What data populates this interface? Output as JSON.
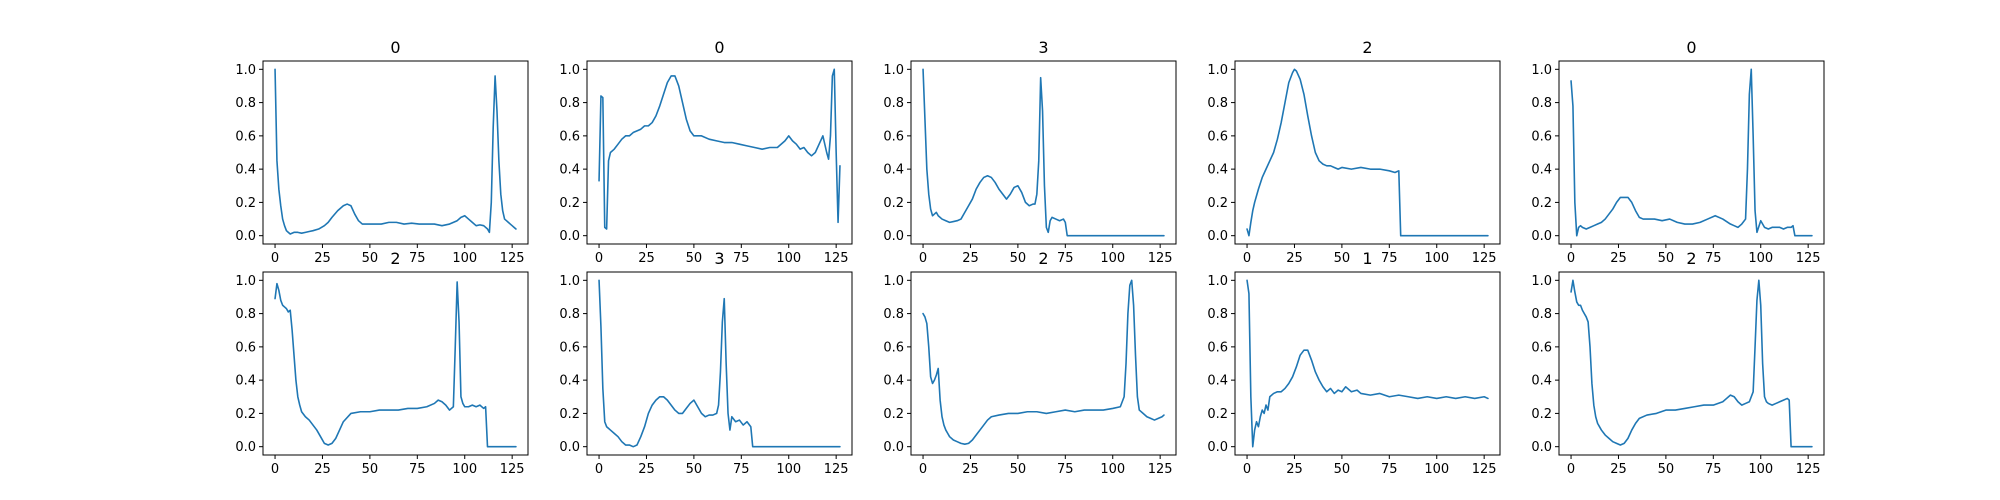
{
  "chart_data": [
    {
      "type": "line",
      "title": "0",
      "x": [
        0,
        1,
        2,
        3,
        4,
        5,
        6,
        7,
        8,
        10,
        12,
        14,
        16,
        18,
        20,
        23,
        26,
        28,
        30,
        33,
        36,
        38,
        40,
        42,
        44,
        46,
        48,
        52,
        56,
        60,
        64,
        68,
        72,
        76,
        80,
        84,
        88,
        92,
        96,
        98,
        100,
        102,
        104,
        106,
        108,
        110,
        112,
        113,
        114,
        115,
        116,
        117,
        118,
        119,
        120,
        121,
        122,
        123,
        124,
        125,
        126,
        127
      ],
      "values": [
        1.0,
        0.45,
        0.28,
        0.18,
        0.1,
        0.06,
        0.03,
        0.02,
        0.01,
        0.02,
        0.02,
        0.015,
        0.02,
        0.025,
        0.03,
        0.04,
        0.06,
        0.08,
        0.11,
        0.15,
        0.18,
        0.19,
        0.18,
        0.13,
        0.09,
        0.07,
        0.07,
        0.07,
        0.07,
        0.08,
        0.08,
        0.07,
        0.075,
        0.07,
        0.07,
        0.07,
        0.06,
        0.07,
        0.09,
        0.11,
        0.12,
        0.1,
        0.08,
        0.06,
        0.065,
        0.06,
        0.04,
        0.02,
        0.2,
        0.65,
        0.96,
        0.75,
        0.45,
        0.25,
        0.15,
        0.1,
        0.09,
        0.08,
        0.07,
        0.06,
        0.05,
        0.04
      ],
      "xlim": [
        -6.35,
        133.35
      ],
      "ylim": [
        -0.05,
        1.05
      ],
      "xticks": [
        "0",
        "25",
        "50",
        "75",
        "100",
        "125"
      ],
      "yticks": [
        "0.0",
        "0.2",
        "0.4",
        "0.6",
        "0.8",
        "1.0"
      ]
    },
    {
      "type": "line",
      "title": "0",
      "x": [
        0,
        1,
        2,
        3,
        4,
        5,
        6,
        8,
        10,
        12,
        14,
        16,
        18,
        20,
        22,
        24,
        26,
        28,
        30,
        32,
        34,
        36,
        38,
        40,
        42,
        44,
        46,
        48,
        50,
        54,
        58,
        62,
        66,
        70,
        74,
        78,
        82,
        86,
        90,
        94,
        98,
        100,
        102,
        104,
        106,
        108,
        110,
        112,
        114,
        116,
        118,
        120,
        121,
        122,
        123,
        124,
        125,
        126,
        127
      ],
      "values": [
        0.33,
        0.84,
        0.83,
        0.05,
        0.04,
        0.45,
        0.5,
        0.52,
        0.55,
        0.58,
        0.6,
        0.6,
        0.62,
        0.63,
        0.64,
        0.66,
        0.66,
        0.68,
        0.72,
        0.78,
        0.85,
        0.92,
        0.96,
        0.96,
        0.9,
        0.8,
        0.7,
        0.63,
        0.6,
        0.6,
        0.58,
        0.57,
        0.56,
        0.56,
        0.55,
        0.54,
        0.53,
        0.52,
        0.53,
        0.53,
        0.57,
        0.6,
        0.57,
        0.55,
        0.52,
        0.53,
        0.5,
        0.48,
        0.5,
        0.55,
        0.6,
        0.5,
        0.46,
        0.6,
        0.96,
        1.0,
        0.5,
        0.08,
        0.42
      ],
      "xlim": [
        -6.35,
        133.35
      ],
      "ylim": [
        -0.05,
        1.05
      ],
      "xticks": [
        "0",
        "25",
        "50",
        "75",
        "100",
        "125"
      ],
      "yticks": [
        "0.0",
        "0.2",
        "0.4",
        "0.6",
        "0.8",
        "1.0"
      ]
    },
    {
      "type": "line",
      "title": "3",
      "x": [
        0,
        1,
        2,
        3,
        4,
        5,
        6,
        7,
        8,
        10,
        12,
        14,
        16,
        18,
        20,
        22,
        24,
        26,
        28,
        30,
        32,
        34,
        36,
        38,
        40,
        42,
        44,
        46,
        48,
        50,
        52,
        54,
        56,
        58,
        59,
        60,
        61,
        62,
        63,
        64,
        65,
        66,
        67,
        68,
        70,
        72,
        74,
        75,
        76,
        78,
        80,
        85,
        90,
        95,
        100,
        105,
        110,
        115,
        120,
        125,
        127
      ],
      "values": [
        1.0,
        0.7,
        0.4,
        0.25,
        0.16,
        0.12,
        0.13,
        0.14,
        0.12,
        0.1,
        0.09,
        0.08,
        0.085,
        0.09,
        0.1,
        0.14,
        0.18,
        0.22,
        0.28,
        0.32,
        0.35,
        0.36,
        0.35,
        0.32,
        0.28,
        0.25,
        0.22,
        0.25,
        0.29,
        0.3,
        0.26,
        0.2,
        0.18,
        0.19,
        0.19,
        0.25,
        0.45,
        0.95,
        0.75,
        0.3,
        0.05,
        0.02,
        0.09,
        0.11,
        0.1,
        0.09,
        0.1,
        0.08,
        0.0,
        0.0,
        0.0,
        0.0,
        0.0,
        0.0,
        0.0,
        0.0,
        0.0,
        0.0,
        0.0,
        0.0,
        0.0
      ],
      "xlim": [
        -6.35,
        133.35
      ],
      "ylim": [
        -0.05,
        1.05
      ],
      "xticks": [
        "0",
        "25",
        "50",
        "75",
        "100",
        "125"
      ],
      "yticks": [
        "0.0",
        "0.2",
        "0.4",
        "0.6",
        "0.8",
        "1.0"
      ]
    },
    {
      "type": "line",
      "title": "2",
      "x": [
        0,
        1,
        2,
        3,
        4,
        6,
        8,
        10,
        12,
        14,
        16,
        18,
        20,
        22,
        24,
        25,
        26,
        28,
        30,
        32,
        34,
        36,
        38,
        40,
        42,
        44,
        46,
        48,
        50,
        55,
        60,
        65,
        70,
        75,
        78,
        80,
        81,
        85,
        90,
        95,
        100,
        105,
        110,
        115,
        120,
        125,
        127
      ],
      "values": [
        0.04,
        0.0,
        0.08,
        0.15,
        0.2,
        0.28,
        0.35,
        0.4,
        0.45,
        0.5,
        0.58,
        0.68,
        0.8,
        0.92,
        0.98,
        1.0,
        0.99,
        0.94,
        0.85,
        0.72,
        0.6,
        0.5,
        0.45,
        0.43,
        0.42,
        0.42,
        0.41,
        0.4,
        0.41,
        0.4,
        0.41,
        0.4,
        0.4,
        0.39,
        0.38,
        0.39,
        0.0,
        0.0,
        0.0,
        0.0,
        0.0,
        0.0,
        0.0,
        0.0,
        0.0,
        0.0,
        0.0
      ],
      "xlim": [
        -6.35,
        133.35
      ],
      "ylim": [
        -0.05,
        1.05
      ],
      "xticks": [
        "0",
        "25",
        "50",
        "75",
        "100",
        "125"
      ],
      "yticks": [
        "0.0",
        "0.2",
        "0.4",
        "0.6",
        "0.8",
        "1.0"
      ]
    },
    {
      "type": "line",
      "title": "0",
      "x": [
        0,
        1,
        2,
        3,
        4,
        5,
        6,
        8,
        10,
        12,
        14,
        16,
        18,
        20,
        22,
        24,
        26,
        28,
        30,
        32,
        34,
        36,
        38,
        40,
        44,
        48,
        52,
        56,
        60,
        64,
        68,
        72,
        76,
        80,
        84,
        86,
        88,
        90,
        92,
        93,
        94,
        95,
        96,
        97,
        98,
        100,
        102,
        104,
        106,
        108,
        110,
        112,
        114,
        116,
        117,
        118,
        120,
        122,
        124,
        126,
        127
      ],
      "values": [
        0.93,
        0.78,
        0.2,
        0.0,
        0.05,
        0.06,
        0.05,
        0.04,
        0.05,
        0.06,
        0.07,
        0.08,
        0.1,
        0.13,
        0.16,
        0.2,
        0.23,
        0.23,
        0.23,
        0.2,
        0.15,
        0.11,
        0.1,
        0.1,
        0.1,
        0.09,
        0.1,
        0.08,
        0.07,
        0.07,
        0.08,
        0.1,
        0.12,
        0.1,
        0.07,
        0.06,
        0.05,
        0.07,
        0.1,
        0.4,
        0.85,
        1.0,
        0.6,
        0.15,
        0.02,
        0.09,
        0.05,
        0.04,
        0.05,
        0.05,
        0.05,
        0.04,
        0.05,
        0.05,
        0.06,
        0.0,
        0.0,
        0.0,
        0.0,
        0.0,
        0.0
      ],
      "xlim": [
        -6.35,
        133.35
      ],
      "ylim": [
        -0.05,
        1.05
      ],
      "xticks": [
        "0",
        "25",
        "50",
        "75",
        "100",
        "125"
      ],
      "yticks": [
        "0.0",
        "0.2",
        "0.4",
        "0.6",
        "0.8",
        "1.0"
      ]
    },
    {
      "type": "line",
      "title": "2",
      "x": [
        0,
        1,
        2,
        3,
        4,
        5,
        6,
        7,
        8,
        9,
        10,
        11,
        12,
        13,
        14,
        16,
        18,
        20,
        22,
        24,
        26,
        28,
        30,
        32,
        34,
        36,
        40,
        45,
        50,
        55,
        60,
        65,
        70,
        75,
        80,
        84,
        86,
        88,
        90,
        92,
        94,
        95,
        96,
        97,
        98,
        99,
        100,
        102,
        104,
        106,
        108,
        110,
        111,
        112,
        115,
        120,
        125,
        127
      ],
      "values": [
        0.89,
        0.98,
        0.94,
        0.88,
        0.85,
        0.84,
        0.83,
        0.81,
        0.82,
        0.7,
        0.55,
        0.4,
        0.3,
        0.25,
        0.21,
        0.18,
        0.16,
        0.13,
        0.1,
        0.06,
        0.02,
        0.01,
        0.02,
        0.05,
        0.1,
        0.15,
        0.2,
        0.21,
        0.21,
        0.22,
        0.22,
        0.22,
        0.23,
        0.23,
        0.24,
        0.26,
        0.28,
        0.27,
        0.25,
        0.22,
        0.24,
        0.6,
        0.99,
        0.75,
        0.3,
        0.26,
        0.24,
        0.24,
        0.25,
        0.24,
        0.25,
        0.23,
        0.24,
        0.0,
        0.0,
        0.0,
        0.0,
        0.0
      ],
      "xlim": [
        -6.35,
        133.35
      ],
      "ylim": [
        -0.05,
        1.05
      ],
      "xticks": [
        "0",
        "25",
        "50",
        "75",
        "100",
        "125"
      ],
      "yticks": [
        "0.0",
        "0.2",
        "0.4",
        "0.6",
        "0.8",
        "1.0"
      ]
    },
    {
      "type": "line",
      "title": "3",
      "x": [
        0,
        1,
        2,
        3,
        4,
        5,
        6,
        8,
        10,
        12,
        14,
        16,
        18,
        20,
        22,
        24,
        26,
        28,
        30,
        32,
        34,
        36,
        38,
        40,
        42,
        44,
        46,
        48,
        50,
        52,
        54,
        56,
        58,
        60,
        62,
        63,
        64,
        65,
        66,
        67,
        68,
        69,
        70,
        72,
        74,
        76,
        78,
        80,
        81,
        85,
        90,
        100,
        110,
        120,
        127
      ],
      "values": [
        1.0,
        0.72,
        0.35,
        0.15,
        0.12,
        0.11,
        0.1,
        0.08,
        0.06,
        0.03,
        0.01,
        0.01,
        0.0,
        0.01,
        0.06,
        0.12,
        0.2,
        0.25,
        0.28,
        0.3,
        0.3,
        0.28,
        0.25,
        0.22,
        0.2,
        0.2,
        0.23,
        0.26,
        0.28,
        0.24,
        0.2,
        0.18,
        0.19,
        0.19,
        0.2,
        0.25,
        0.45,
        0.75,
        0.89,
        0.5,
        0.2,
        0.1,
        0.18,
        0.15,
        0.16,
        0.13,
        0.15,
        0.12,
        0.0,
        0.0,
        0.0,
        0.0,
        0.0,
        0.0,
        0.0
      ],
      "xlim": [
        -6.35,
        133.35
      ],
      "ylim": [
        -0.05,
        1.05
      ],
      "xticks": [
        "0",
        "25",
        "50",
        "75",
        "100",
        "125"
      ],
      "yticks": [
        "0.0",
        "0.2",
        "0.4",
        "0.6",
        "0.8",
        "1.0"
      ]
    },
    {
      "type": "line",
      "title": "2",
      "x": [
        0,
        1,
        2,
        3,
        4,
        5,
        6,
        7,
        8,
        9,
        10,
        11,
        12,
        13,
        14,
        16,
        18,
        20,
        22,
        24,
        26,
        28,
        30,
        32,
        34,
        36,
        40,
        45,
        50,
        55,
        60,
        65,
        70,
        75,
        80,
        85,
        90,
        95,
        100,
        104,
        106,
        107,
        108,
        109,
        110,
        111,
        112,
        113,
        114,
        116,
        118,
        120,
        122,
        124,
        126,
        127
      ],
      "values": [
        0.8,
        0.78,
        0.74,
        0.6,
        0.42,
        0.38,
        0.4,
        0.43,
        0.47,
        0.28,
        0.18,
        0.13,
        0.1,
        0.08,
        0.06,
        0.04,
        0.03,
        0.02,
        0.015,
        0.02,
        0.04,
        0.07,
        0.1,
        0.13,
        0.16,
        0.18,
        0.19,
        0.2,
        0.2,
        0.21,
        0.21,
        0.2,
        0.21,
        0.22,
        0.21,
        0.22,
        0.22,
        0.22,
        0.23,
        0.24,
        0.3,
        0.5,
        0.8,
        0.97,
        1.0,
        0.85,
        0.55,
        0.3,
        0.22,
        0.2,
        0.18,
        0.17,
        0.16,
        0.17,
        0.18,
        0.19
      ],
      "xlim": [
        -6.35,
        133.35
      ],
      "ylim": [
        -0.05,
        1.05
      ],
      "xticks": [
        "0",
        "25",
        "50",
        "75",
        "100",
        "125"
      ],
      "yticks": [
        "0.0",
        "0.2",
        "0.4",
        "0.6",
        "0.8",
        "1.0"
      ]
    },
    {
      "type": "line",
      "title": "1",
      "x": [
        0,
        1,
        2,
        3,
        4,
        5,
        6,
        7,
        8,
        9,
        10,
        11,
        12,
        14,
        16,
        18,
        20,
        22,
        24,
        26,
        28,
        30,
        32,
        34,
        36,
        38,
        40,
        42,
        44,
        46,
        48,
        50,
        52,
        55,
        58,
        60,
        65,
        70,
        75,
        80,
        85,
        90,
        95,
        100,
        105,
        110,
        115,
        120,
        125,
        127
      ],
      "values": [
        1.0,
        0.92,
        0.3,
        0.0,
        0.1,
        0.15,
        0.12,
        0.18,
        0.22,
        0.2,
        0.25,
        0.22,
        0.3,
        0.32,
        0.33,
        0.33,
        0.35,
        0.38,
        0.42,
        0.48,
        0.55,
        0.58,
        0.58,
        0.52,
        0.45,
        0.4,
        0.36,
        0.33,
        0.35,
        0.32,
        0.34,
        0.33,
        0.36,
        0.33,
        0.34,
        0.32,
        0.31,
        0.32,
        0.3,
        0.31,
        0.3,
        0.29,
        0.3,
        0.29,
        0.3,
        0.29,
        0.3,
        0.29,
        0.3,
        0.29
      ],
      "xlim": [
        -6.35,
        133.35
      ],
      "ylim": [
        -0.05,
        1.05
      ],
      "xticks": [
        "0",
        "25",
        "50",
        "75",
        "100",
        "125"
      ],
      "yticks": [
        "0.0",
        "0.2",
        "0.4",
        "0.6",
        "0.8",
        "1.0"
      ]
    },
    {
      "type": "line",
      "title": "2",
      "x": [
        0,
        1,
        2,
        3,
        4,
        5,
        6,
        7,
        8,
        9,
        10,
        11,
        12,
        13,
        14,
        16,
        18,
        20,
        22,
        24,
        26,
        28,
        30,
        32,
        34,
        36,
        40,
        45,
        50,
        55,
        60,
        65,
        70,
        75,
        80,
        82,
        84,
        86,
        88,
        90,
        92,
        94,
        96,
        97,
        98,
        99,
        100,
        101,
        102,
        103,
        104,
        106,
        108,
        110,
        112,
        114,
        115,
        116,
        120,
        125,
        127
      ],
      "values": [
        0.93,
        1.0,
        0.93,
        0.87,
        0.85,
        0.85,
        0.82,
        0.8,
        0.78,
        0.75,
        0.6,
        0.38,
        0.25,
        0.18,
        0.14,
        0.1,
        0.07,
        0.05,
        0.03,
        0.02,
        0.01,
        0.02,
        0.05,
        0.1,
        0.14,
        0.17,
        0.19,
        0.2,
        0.22,
        0.22,
        0.23,
        0.24,
        0.25,
        0.25,
        0.27,
        0.29,
        0.31,
        0.3,
        0.27,
        0.25,
        0.26,
        0.27,
        0.33,
        0.6,
        0.88,
        1.0,
        0.85,
        0.5,
        0.3,
        0.27,
        0.26,
        0.25,
        0.26,
        0.27,
        0.28,
        0.29,
        0.28,
        0.0,
        0.0,
        0.0,
        0.0
      ],
      "xlim": [
        -6.35,
        133.35
      ],
      "ylim": [
        -0.05,
        1.05
      ],
      "xticks": [
        "0",
        "25",
        "50",
        "75",
        "100",
        "125"
      ],
      "yticks": [
        "0.0",
        "0.2",
        "0.4",
        "0.6",
        "0.8",
        "1.0"
      ]
    }
  ],
  "style": {
    "line_color": "#1f77b4",
    "axes_color": "#000000",
    "background": "#ffffff"
  }
}
